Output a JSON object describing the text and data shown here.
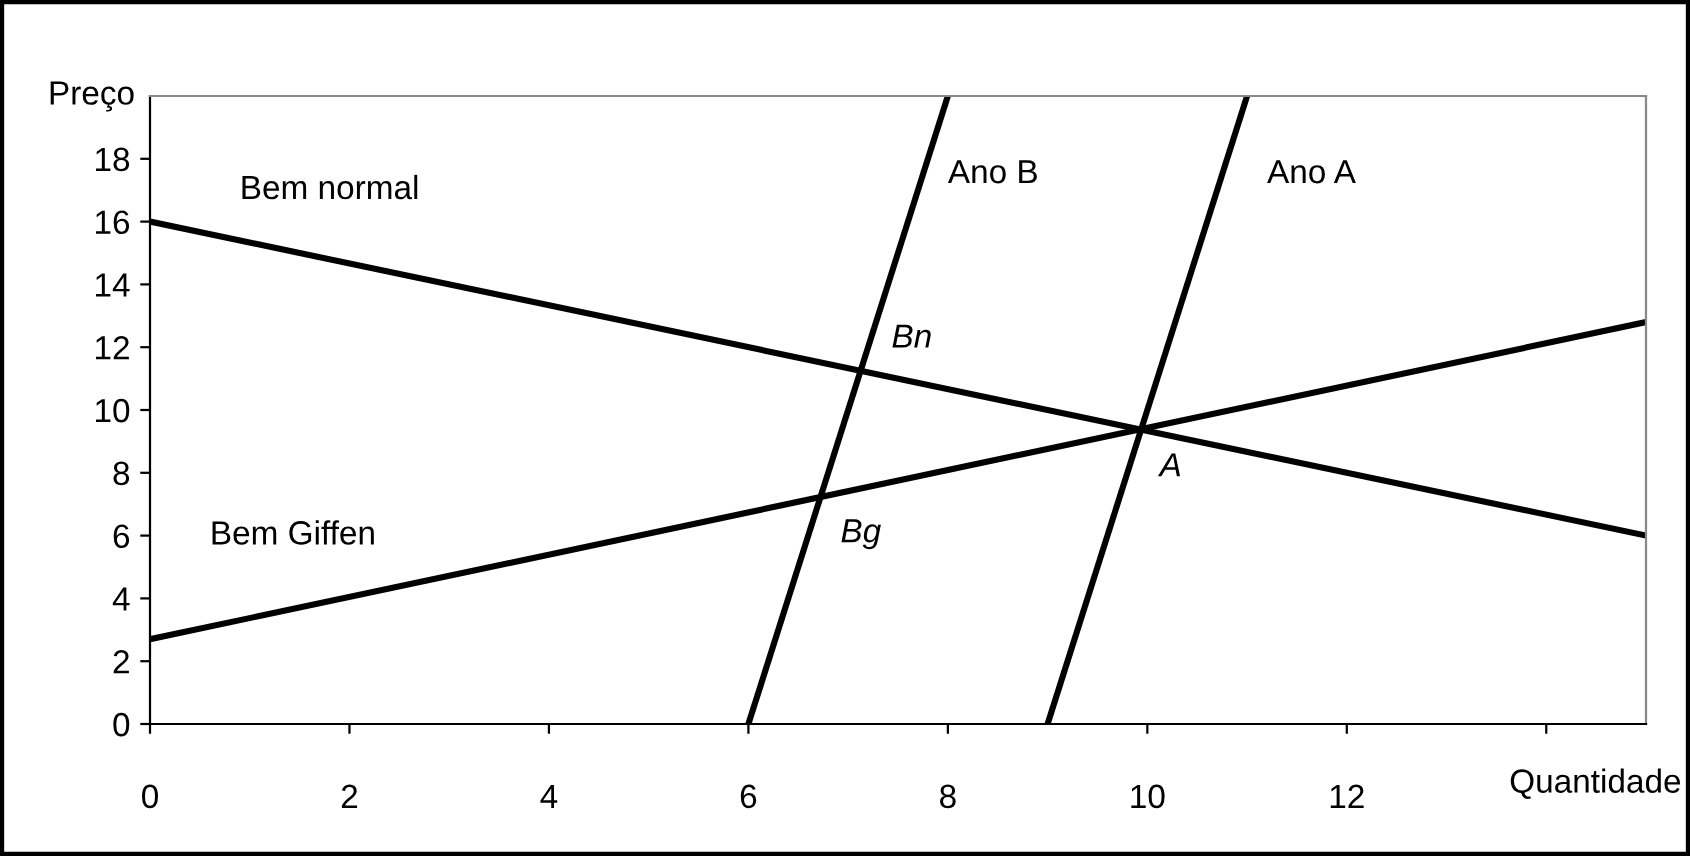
{
  "chart_data": {
    "type": "line",
    "xlabel": "Quantidade",
    "ylabel": "Preço",
    "xlim": [
      0,
      15
    ],
    "xticks": [
      0,
      2,
      4,
      6,
      8,
      10,
      12,
      {
        "value": 14,
        "label": null
      }
    ],
    "ylim": [
      0,
      20
    ],
    "yticks": [
      0,
      2,
      4,
      6,
      8,
      10,
      12,
      14,
      16,
      18
    ],
    "grid": false,
    "legend": false,
    "marker": "none",
    "line_style": "solid",
    "series": [
      {
        "name": "Bem normal",
        "color": "#000000",
        "x": [
          0,
          15
        ],
        "values": [
          16,
          6
        ]
      },
      {
        "name": "Bem Giffen",
        "color": "#000000",
        "x": [
          0,
          15
        ],
        "values": [
          2.7,
          12.8
        ]
      },
      {
        "name": "Ano B",
        "color": "#000000",
        "x": [
          6,
          8
        ],
        "values": [
          0,
          20
        ]
      },
      {
        "name": "Ano A",
        "color": "#000000",
        "x": [
          9,
          11
        ],
        "values": [
          0,
          20
        ]
      }
    ],
    "annotations": [
      {
        "text": "Bn",
        "x": 7.1,
        "y": 11.2
      },
      {
        "text": "Bg",
        "x": 6.7,
        "y": 7.3
      },
      {
        "text": "A",
        "x": 9.9,
        "y": 9.4
      }
    ]
  }
}
